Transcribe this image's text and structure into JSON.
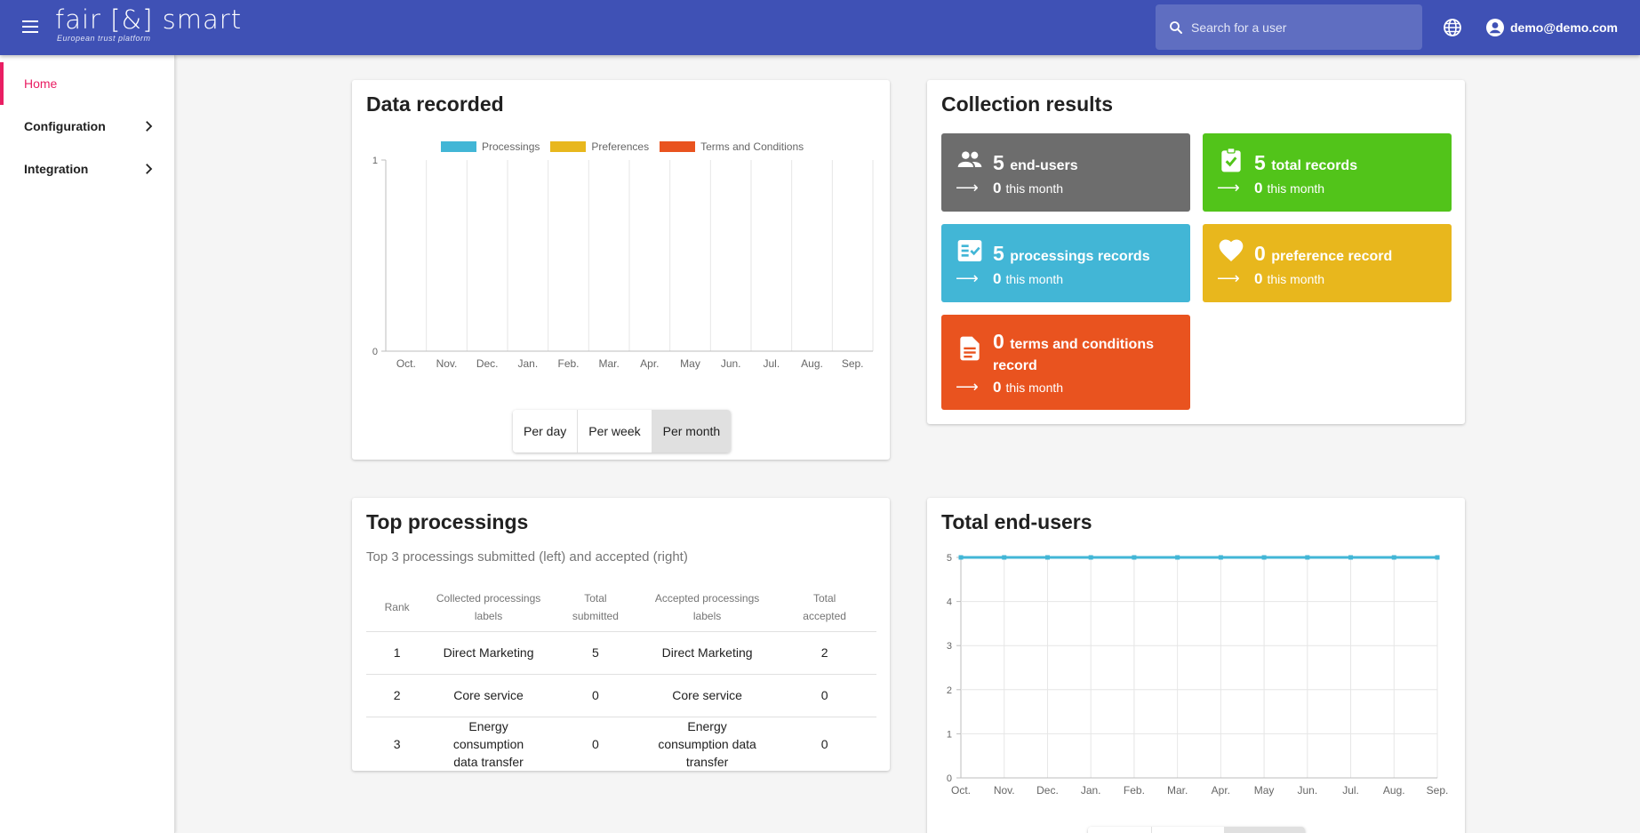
{
  "header": {
    "logo_text": "fair [&] smart",
    "logo_tagline": "European trust platform",
    "search_placeholder": "Search for a user",
    "user_email": "demo@demo.com"
  },
  "sidebar": {
    "items": [
      {
        "label": "Home",
        "active": true
      },
      {
        "label": "Configuration",
        "expandable": true
      },
      {
        "label": "Integration",
        "expandable": true
      }
    ]
  },
  "data_recorded": {
    "title": "Data recorded",
    "buttons": [
      "Per day",
      "Per week",
      "Per month"
    ],
    "selected_button": "Per month"
  },
  "collection_results": {
    "title": "Collection results",
    "this_month_label": "this month",
    "tiles": [
      {
        "count": "5",
        "label": "end-users",
        "month": "0",
        "icon": "people-icon",
        "color": "#6d6d6d"
      },
      {
        "count": "5",
        "label": "total records",
        "month": "0",
        "icon": "clipboard-check-icon",
        "color": "#52c41a"
      },
      {
        "count": "5",
        "label": "processings records",
        "month": "0",
        "icon": "checklist-icon",
        "color": "#42b6d6"
      },
      {
        "count": "0",
        "label": "preference record",
        "month": "0",
        "icon": "heart-icon",
        "color": "#e8b71d"
      },
      {
        "count": "0",
        "label": "terms and conditions record",
        "month": "0",
        "icon": "document-icon",
        "color": "#e9531f"
      }
    ]
  },
  "top_processings": {
    "title": "Top processings",
    "subtitle": "Top 3 processings submitted (left) and accepted (right)",
    "columns": [
      "Rank",
      "Collected processings labels",
      "Total submitted",
      "Accepted processings labels",
      "Total accepted"
    ],
    "rows": [
      [
        "1",
        "Direct Marketing",
        "5",
        "Direct Marketing",
        "2"
      ],
      [
        "2",
        "Core service",
        "0",
        "Core service",
        "0"
      ],
      [
        "3",
        "Energy consumption data transfer",
        "0",
        "Energy consumption data transfer",
        "0"
      ]
    ]
  },
  "total_end_users": {
    "title": "Total end-users"
  },
  "chart_data": [
    {
      "type": "bar",
      "title": "Data recorded",
      "categories": [
        "Oct.",
        "Nov.",
        "Dec.",
        "Jan.",
        "Feb.",
        "Mar.",
        "Apr.",
        "May",
        "Jun.",
        "Jul.",
        "Aug.",
        "Sep."
      ],
      "series": [
        {
          "name": "Processings",
          "color": "#42b6d6",
          "values": [
            0,
            0,
            0,
            0,
            0,
            0,
            0,
            0,
            0,
            0,
            0,
            0
          ]
        },
        {
          "name": "Preferences",
          "color": "#e8b71d",
          "values": [
            0,
            0,
            0,
            0,
            0,
            0,
            0,
            0,
            0,
            0,
            0,
            0
          ]
        },
        {
          "name": "Terms and Conditions",
          "color": "#e9531f",
          "values": [
            0,
            0,
            0,
            0,
            0,
            0,
            0,
            0,
            0,
            0,
            0,
            0
          ]
        }
      ],
      "ylim": [
        0,
        1
      ],
      "yticks": [
        "0",
        "1"
      ],
      "legend": "top"
    },
    {
      "type": "line",
      "title": "Total end-users",
      "categories": [
        "Oct.",
        "Nov.",
        "Dec.",
        "Jan.",
        "Feb.",
        "Mar.",
        "Apr.",
        "May",
        "Jun.",
        "Jul.",
        "Aug.",
        "Sep."
      ],
      "series": [
        {
          "name": "End-users",
          "color": "#42b6d6",
          "values": [
            5,
            5,
            5,
            5,
            5,
            5,
            5,
            5,
            5,
            5,
            5,
            5
          ]
        }
      ],
      "ylim": [
        0,
        5
      ],
      "yticks": [
        "0",
        "1",
        "2",
        "3",
        "4",
        "5"
      ]
    }
  ]
}
